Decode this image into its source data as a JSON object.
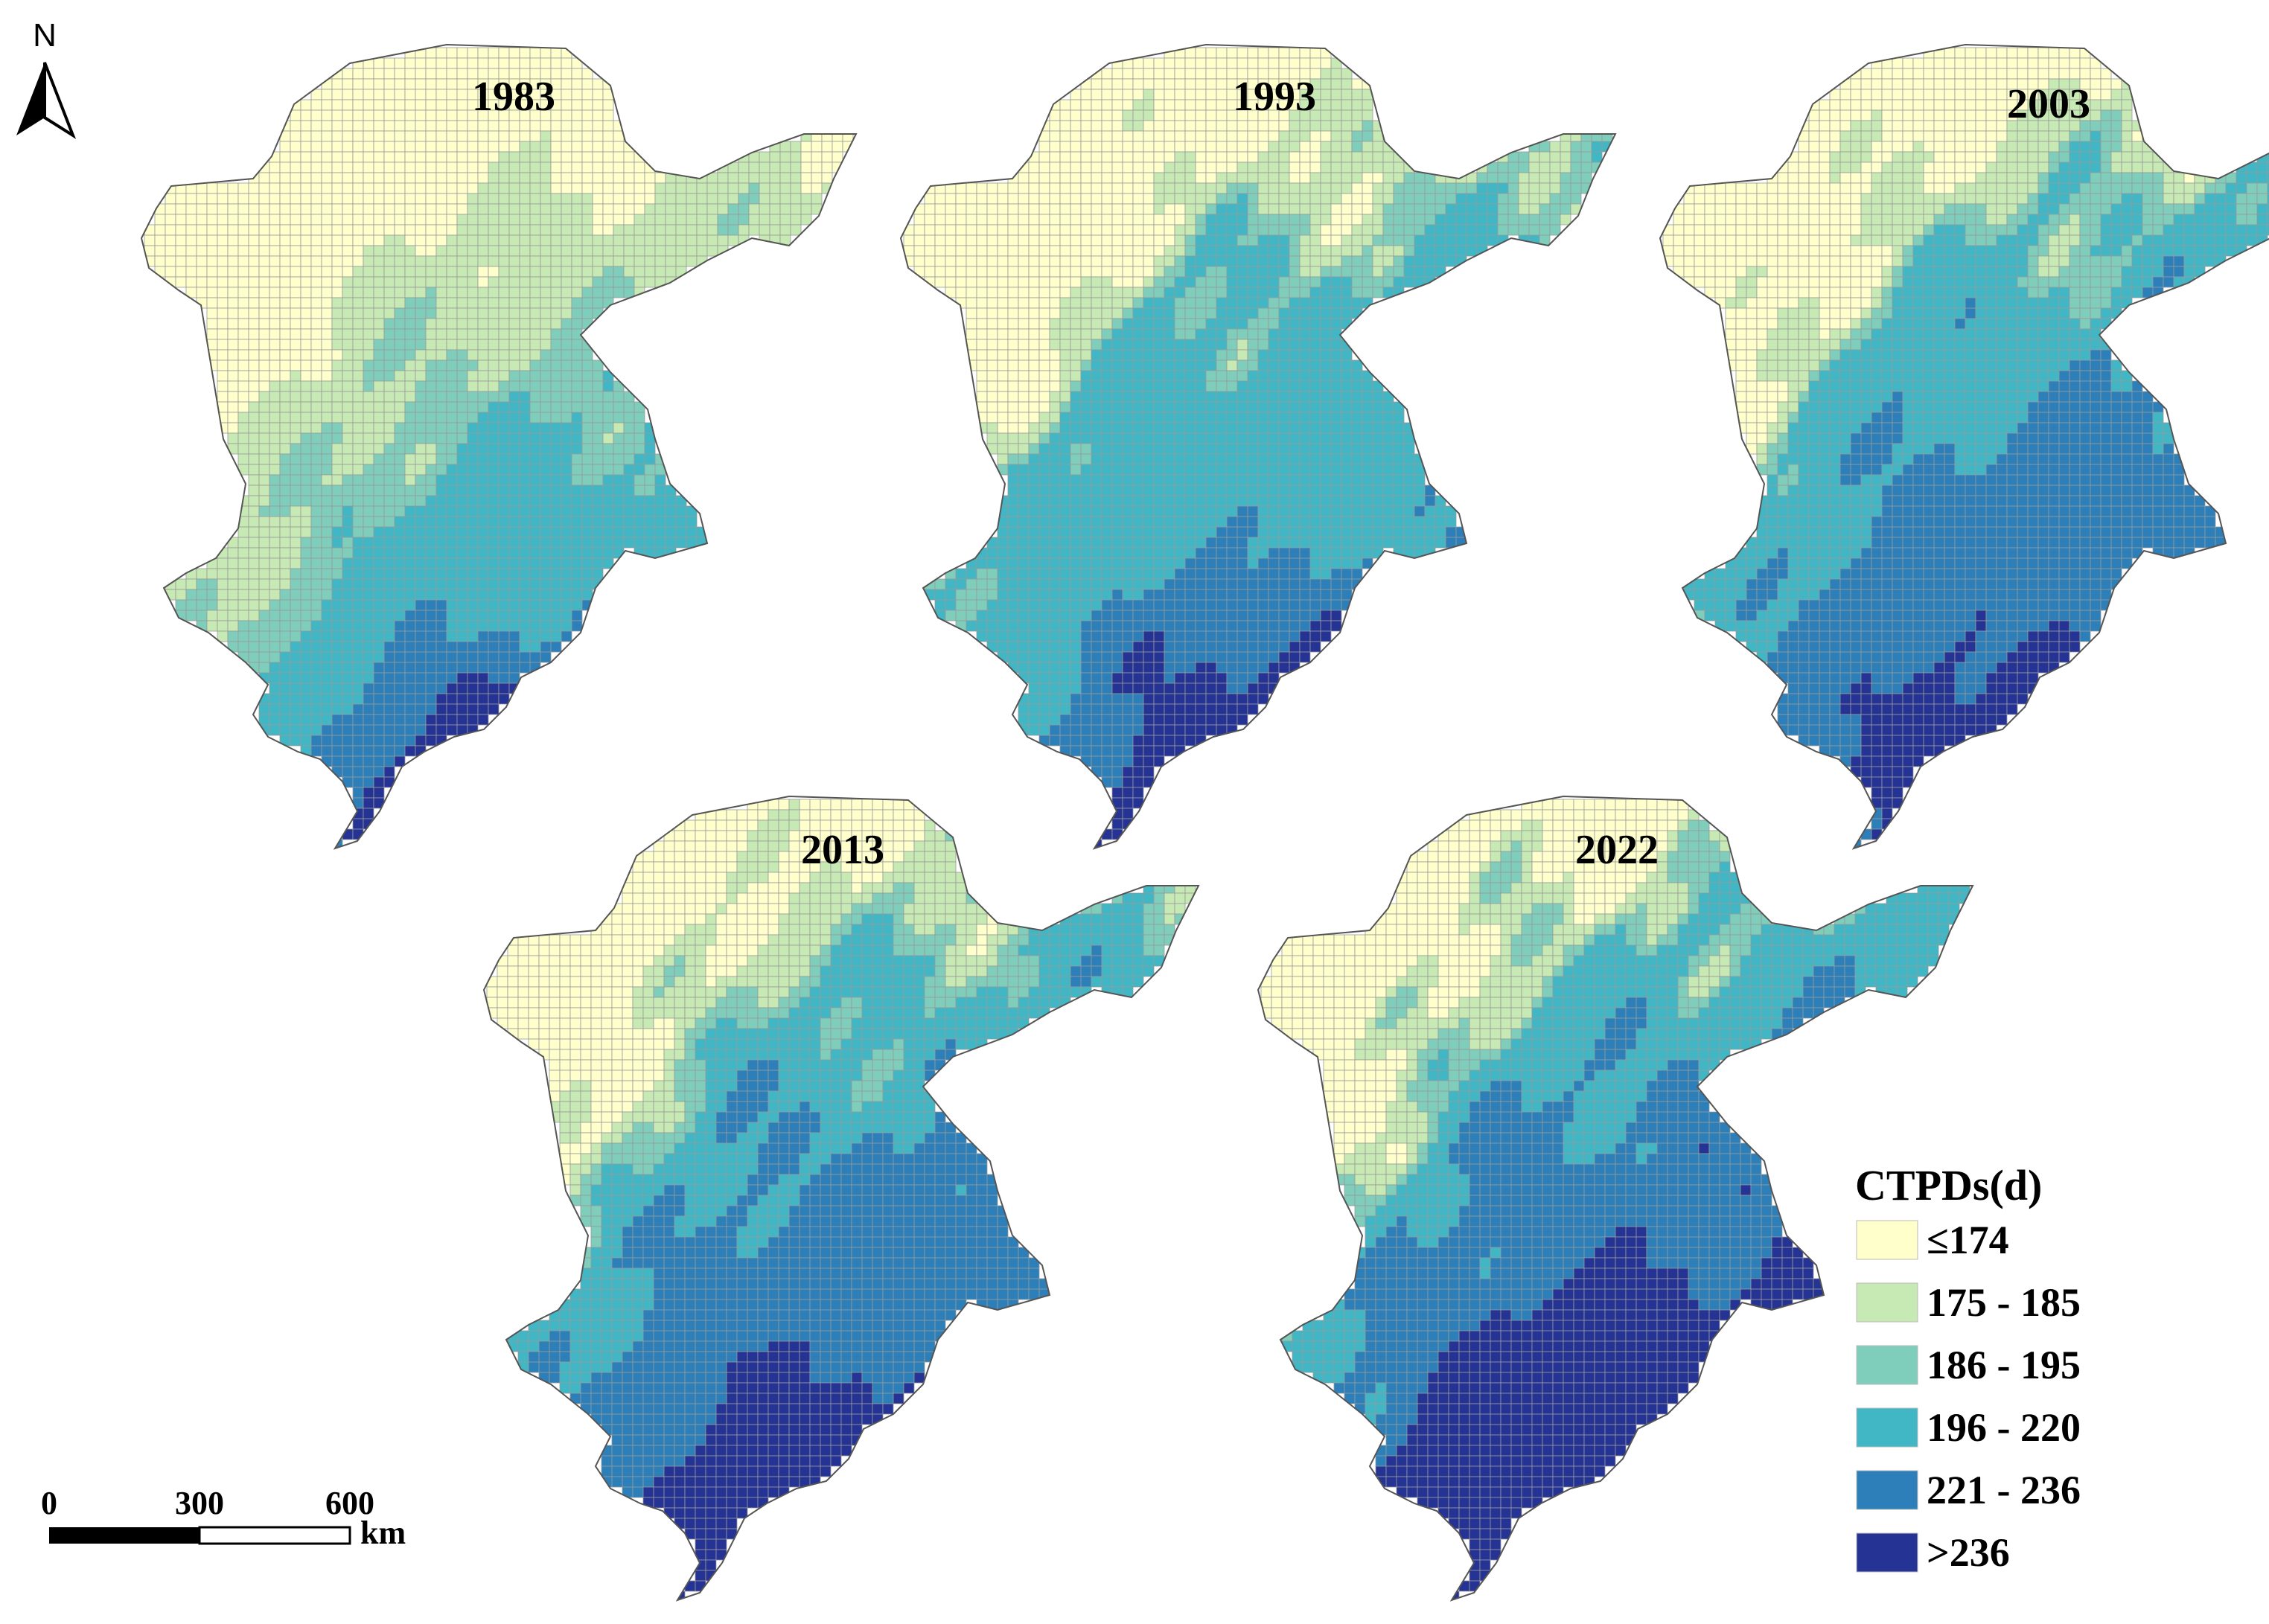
{
  "maps": [
    {
      "year": "1983",
      "dist": [
        0.3,
        0.26,
        0.15,
        0.21,
        0.06,
        0.02
      ]
    },
    {
      "year": "1993",
      "dist": [
        0.24,
        0.11,
        0.09,
        0.4,
        0.11,
        0.05
      ]
    },
    {
      "year": "2003",
      "dist": [
        0.19,
        0.1,
        0.07,
        0.28,
        0.3,
        0.06
      ]
    },
    {
      "year": "2013",
      "dist": [
        0.18,
        0.11,
        0.08,
        0.23,
        0.31,
        0.09
      ]
    },
    {
      "year": "2022",
      "dist": [
        0.16,
        0.09,
        0.07,
        0.21,
        0.26,
        0.21
      ]
    }
  ],
  "legend": {
    "title": "CTPDs(d)",
    "classes": [
      {
        "label": "≤174",
        "color": "#ffffcc"
      },
      {
        "label": "175 - 185",
        "color": "#c7e9b4"
      },
      {
        "label": "186 - 195",
        "color": "#7fcdbb"
      },
      {
        "label": "196 - 220",
        "color": "#41b6c4"
      },
      {
        "label": "221 - 236",
        "color": "#2c7fb8"
      },
      {
        "label": ">236",
        "color": "#253494"
      }
    ]
  },
  "scale_bar": {
    "labels": [
      "0",
      "300",
      "600"
    ],
    "unit": "km"
  },
  "north_arrow": {
    "label": "N",
    "icon": "north-arrow-icon"
  }
}
